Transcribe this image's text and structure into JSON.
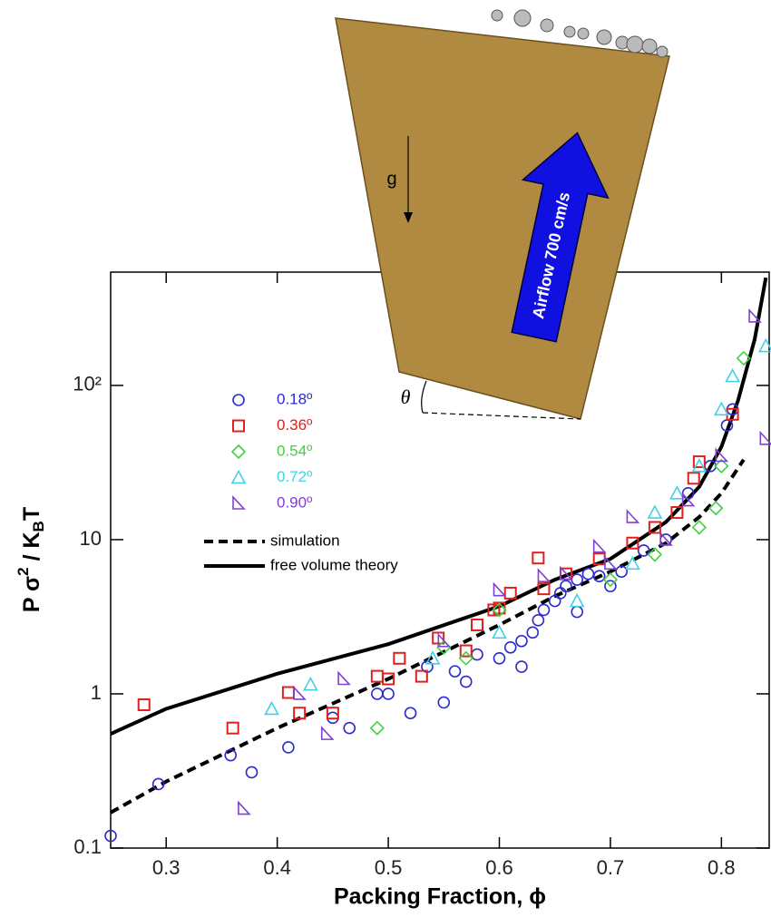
{
  "chart_data": {
    "type": "scatter",
    "xlabel": "Packing Fraction, ϕ",
    "ylabel_parts": [
      "P σ",
      "2",
      " / K",
      "B",
      "T"
    ],
    "xlim": [
      0.25,
      0.843
    ],
    "ylim": [
      0.1,
      543
    ],
    "log_y": true,
    "xticks": [
      0.3,
      0.4,
      0.5,
      0.6,
      0.7,
      0.8
    ],
    "yticks": [
      0.1,
      1,
      10,
      {
        "value": 100,
        "label": "10²"
      }
    ],
    "series": [
      {
        "name": "0.18º",
        "color": "#2a2ad0",
        "marker": "circle",
        "x": [
          0.25,
          0.293,
          0.358,
          0.377,
          0.41,
          0.45,
          0.465,
          0.49,
          0.5,
          0.52,
          0.535,
          0.55,
          0.56,
          0.57,
          0.58,
          0.6,
          0.61,
          0.62,
          0.62,
          0.63,
          0.635,
          0.64,
          0.65,
          0.655,
          0.66,
          0.67,
          0.67,
          0.68,
          0.69,
          0.7,
          0.71,
          0.73,
          0.75,
          0.77,
          0.79,
          0.805,
          0.81
        ],
        "values": [
          0.12,
          0.26,
          0.4,
          0.31,
          0.45,
          0.7,
          0.6,
          1.0,
          1.0,
          0.75,
          1.5,
          0.88,
          1.4,
          1.2,
          1.8,
          1.7,
          2.0,
          1.5,
          2.2,
          2.5,
          3.0,
          3.5,
          4.0,
          4.5,
          5.0,
          3.4,
          5.5,
          6.0,
          5.8,
          5.0,
          6.2,
          8.5,
          10,
          20,
          30,
          55,
          70
        ]
      },
      {
        "name": "0.36º",
        "color": "#e02020",
        "marker": "square",
        "x": [
          0.28,
          0.36,
          0.41,
          0.42,
          0.45,
          0.49,
          0.5,
          0.51,
          0.53,
          0.545,
          0.57,
          0.58,
          0.595,
          0.6,
          0.61,
          0.635,
          0.64,
          0.66,
          0.69,
          0.72,
          0.74,
          0.76,
          0.775,
          0.78,
          0.81
        ],
        "values": [
          0.85,
          0.6,
          1.02,
          0.75,
          0.75,
          1.3,
          1.25,
          1.7,
          1.3,
          2.3,
          1.9,
          2.8,
          3.5,
          3.6,
          4.5,
          7.6,
          4.8,
          6,
          7.5,
          9.5,
          12,
          15,
          25,
          32,
          65
        ]
      },
      {
        "name": "0.54º",
        "color": "#40d040",
        "marker": "diamond",
        "x": [
          0.49,
          0.55,
          0.57,
          0.6,
          0.7,
          0.74,
          0.78,
          0.795,
          0.8,
          0.82
        ],
        "values": [
          0.6,
          2.0,
          1.7,
          3.5,
          5.5,
          8,
          12,
          16,
          30,
          150
        ]
      },
      {
        "name": "0.72º",
        "color": "#40d0e8",
        "marker": "triangle",
        "x": [
          0.395,
          0.43,
          0.54,
          0.6,
          0.67,
          0.72,
          0.74,
          0.76,
          0.78,
          0.8,
          0.81,
          0.84
        ],
        "values": [
          0.8,
          1.15,
          1.7,
          2.5,
          4,
          7,
          15,
          20,
          30,
          70,
          115,
          180
        ]
      },
      {
        "name": "0.90º",
        "color": "#8040d0",
        "marker": "wedge",
        "x": [
          0.37,
          0.42,
          0.445,
          0.46,
          0.55,
          0.6,
          0.64,
          0.66,
          0.69,
          0.7,
          0.72,
          0.75,
          0.77,
          0.8,
          0.83,
          0.84
        ],
        "values": [
          0.18,
          1.0,
          0.55,
          1.25,
          2.2,
          4.7,
          5.8,
          6,
          9,
          7,
          14,
          10,
          18,
          35,
          280,
          45
        ]
      }
    ],
    "lines": [
      {
        "name": "simulation",
        "color": "#000000",
        "dashed": true,
        "x": [
          0.25,
          0.3,
          0.4,
          0.5,
          0.6,
          0.65,
          0.7,
          0.75,
          0.78,
          0.8,
          0.82
        ],
        "values": [
          0.17,
          0.27,
          0.6,
          1.25,
          2.8,
          4.3,
          6.2,
          9.5,
          14,
          20,
          33
        ]
      },
      {
        "name": "free volume theory",
        "color": "#000000",
        "dashed": false,
        "x": [
          0.25,
          0.3,
          0.4,
          0.5,
          0.6,
          0.65,
          0.7,
          0.75,
          0.78,
          0.8,
          0.815,
          0.83,
          0.84
        ],
        "values": [
          0.55,
          0.8,
          1.35,
          2.1,
          3.7,
          5.5,
          7.5,
          13,
          22,
          40,
          80,
          200,
          500
        ]
      }
    ]
  },
  "inset": {
    "gravity": "g",
    "angle": "θ",
    "arrow": "Airflow 700 cm/s"
  }
}
